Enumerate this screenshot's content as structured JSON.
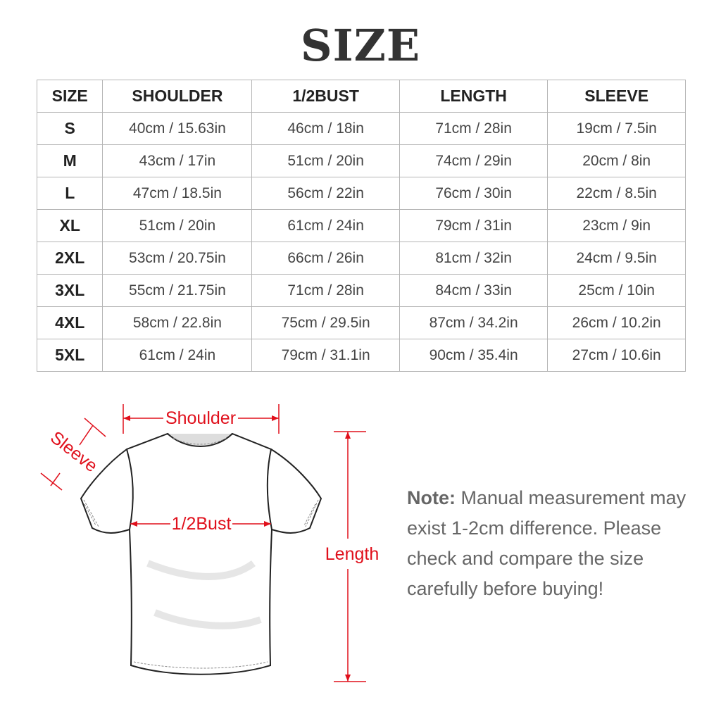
{
  "title": "SIZE",
  "table": {
    "headers": [
      "SIZE",
      "SHOULDER",
      "1/2BUST",
      "LENGTH",
      "SLEEVE"
    ],
    "rows": [
      [
        "S",
        "40cm / 15.63in",
        "46cm / 18in",
        "71cm / 28in",
        "19cm / 7.5in"
      ],
      [
        "M",
        "43cm / 17in",
        "51cm / 20in",
        "74cm / 29in",
        "20cm / 8in"
      ],
      [
        "L",
        "47cm / 18.5in",
        "56cm / 22in",
        "76cm / 30in",
        "22cm / 8.5in"
      ],
      [
        "XL",
        "51cm / 20in",
        "61cm / 24in",
        "79cm / 31in",
        "23cm / 9in"
      ],
      [
        "2XL",
        "53cm / 20.75in",
        "66cm / 26in",
        "81cm / 32in",
        "24cm / 9.5in"
      ],
      [
        "3XL",
        "55cm / 21.75in",
        "71cm / 28in",
        "84cm / 33in",
        "25cm / 10in"
      ],
      [
        "4XL",
        "58cm / 22.8in",
        "75cm / 29.5in",
        "87cm / 34.2in",
        "26cm / 10.2in"
      ],
      [
        "5XL",
        "61cm / 24in",
        "79cm / 31.1in",
        "90cm / 35.4in",
        "27cm / 10.6in"
      ]
    ]
  },
  "diagram": {
    "shoulder": "Shoulder",
    "sleeve": "Sleeve",
    "bust": "1/2Bust",
    "length": "Length",
    "accent_color": "#e0101c"
  },
  "note": {
    "label": "Note:",
    "text": " Manual measurement may exist 1-2cm difference. Please check and compare the size carefully before buying!"
  }
}
